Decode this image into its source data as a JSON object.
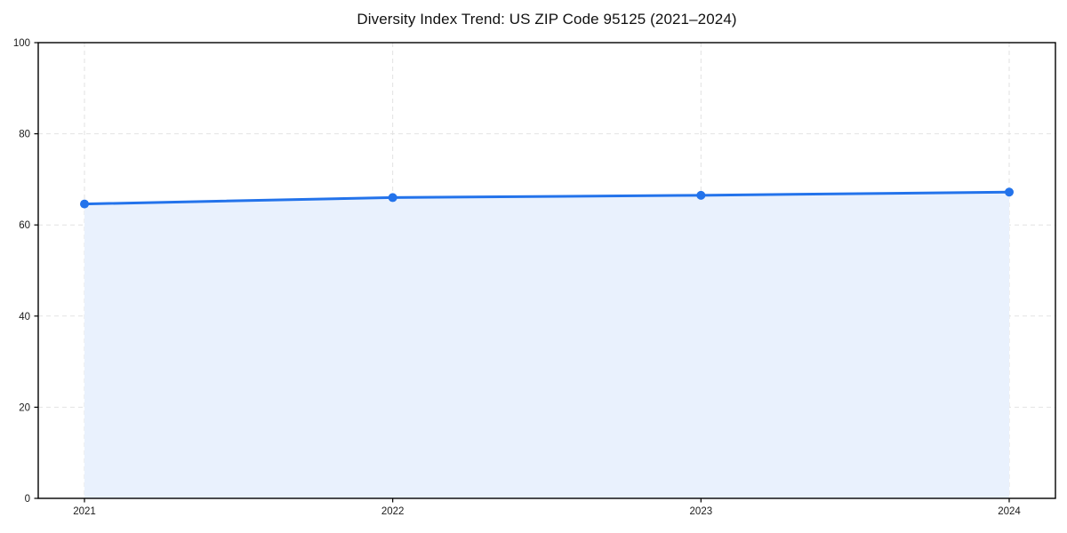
{
  "page": {
    "background": "#ffffff"
  },
  "chart_data": {
    "type": "area",
    "title": "Diversity Index Trend: US ZIP Code 95125 (2021–2024)",
    "categories": [
      "2021",
      "2022",
      "2023",
      "2024"
    ],
    "series": [
      {
        "name": "Diversity Index",
        "values": [
          64.6,
          66.0,
          66.5,
          67.2
        ]
      }
    ],
    "xlabel": "",
    "ylabel": "",
    "ylim": [
      0,
      100
    ],
    "yticks": [
      0,
      20,
      40,
      60,
      80,
      100
    ],
    "grid": true,
    "grid_style": "dashed",
    "legend": null,
    "colors": {
      "line": "#2373eb",
      "marker": "#2373eb",
      "area_fill": "#e9f1fd",
      "gridline": "#e2e2e2",
      "axis": "#000000",
      "tick_text": "#1a1a1a",
      "title_text": "#111111",
      "background": "#ffffff"
    }
  }
}
